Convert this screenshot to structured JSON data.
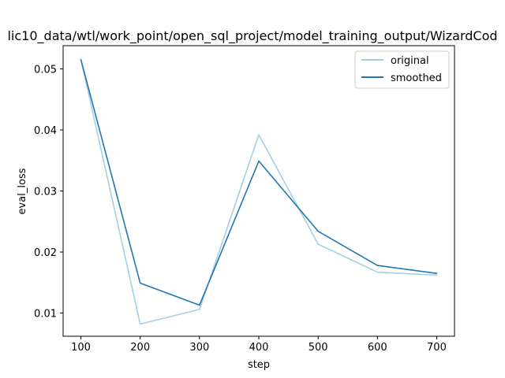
{
  "chart_data": {
    "type": "line",
    "title": "lic10_data/wtl/work_point/open_sql_project/model_training_output/WizardCod",
    "xlabel": "step",
    "ylabel": "eval_loss",
    "xlim": [
      70,
      730
    ],
    "ylim": [
      0.0062,
      0.0538
    ],
    "x_ticks": [
      100,
      200,
      300,
      400,
      500,
      600,
      700
    ],
    "y_ticks": [
      0.01,
      0.02,
      0.03,
      0.04,
      0.05
    ],
    "x_tick_labels": [
      "100",
      "200",
      "300",
      "400",
      "500",
      "600",
      "700"
    ],
    "y_tick_labels": [
      "0.01",
      "0.02",
      "0.03",
      "0.04",
      "0.05"
    ],
    "grid": false,
    "legend_position": "top-right",
    "x": [
      100,
      200,
      300,
      400,
      500,
      600,
      700
    ],
    "series": [
      {
        "name": "original",
        "color": "#a6cee3",
        "values": [
          0.0515,
          0.0082,
          0.0106,
          0.0392,
          0.0213,
          0.0167,
          0.0162
        ]
      },
      {
        "name": "smoothed",
        "color": "#1f78b4",
        "values": [
          0.0515,
          0.0149,
          0.0113,
          0.0349,
          0.0234,
          0.0178,
          0.0165
        ]
      }
    ]
  }
}
